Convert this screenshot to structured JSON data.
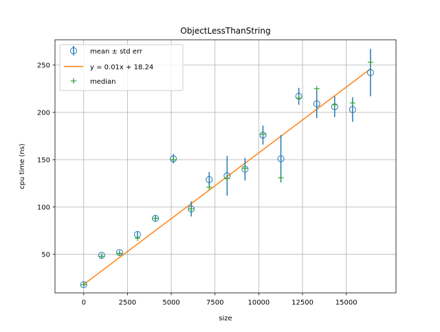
{
  "chart_data": {
    "type": "scatter",
    "title": "ObjectLessThanString",
    "xlabel": "size",
    "ylabel": "cpu time (ns)",
    "xlim": [
      -1640,
      17840
    ],
    "ylim": [
      9.3,
      276.7
    ],
    "xticks": [
      0,
      2500,
      5000,
      7500,
      10000,
      12500,
      15000
    ],
    "yticks": [
      50,
      100,
      150,
      200,
      250
    ],
    "grid": true,
    "legend_position": "top-left",
    "legend": {
      "mean": "mean ± std err",
      "fit": "y = 0.01x + 18.24",
      "median": "median"
    },
    "colors": {
      "mean": "#1f77b4",
      "fit": "#ff7f0e",
      "median": "#2ca02c",
      "grid": "#b0b0b0"
    },
    "fit": {
      "slope": 0.0139,
      "intercept": 18.24,
      "x_range": [
        0,
        16384
      ]
    },
    "series": [
      {
        "name": "mean",
        "x": [
          1,
          1024,
          2048,
          3072,
          4096,
          5120,
          6144,
          7168,
          8192,
          9216,
          10240,
          11264,
          12288,
          13312,
          14336,
          15360,
          16384
        ],
        "y": [
          18,
          49,
          52,
          71,
          88,
          151,
          98,
          129,
          133,
          140,
          176,
          151,
          217,
          209,
          206,
          203,
          242
        ],
        "err": [
          2,
          2,
          2,
          3,
          3,
          5,
          8,
          8,
          21,
          12,
          10,
          25,
          9,
          15,
          11,
          13,
          25
        ]
      },
      {
        "name": "median",
        "x": [
          1,
          1024,
          2048,
          3072,
          4096,
          5120,
          6144,
          7168,
          8192,
          9216,
          10240,
          11264,
          12288,
          13312,
          14336,
          15360,
          16384
        ],
        "y": [
          18,
          48,
          51,
          67,
          88,
          150,
          98,
          121,
          130,
          141,
          177,
          131,
          215,
          225,
          208,
          210,
          253
        ]
      }
    ]
  }
}
